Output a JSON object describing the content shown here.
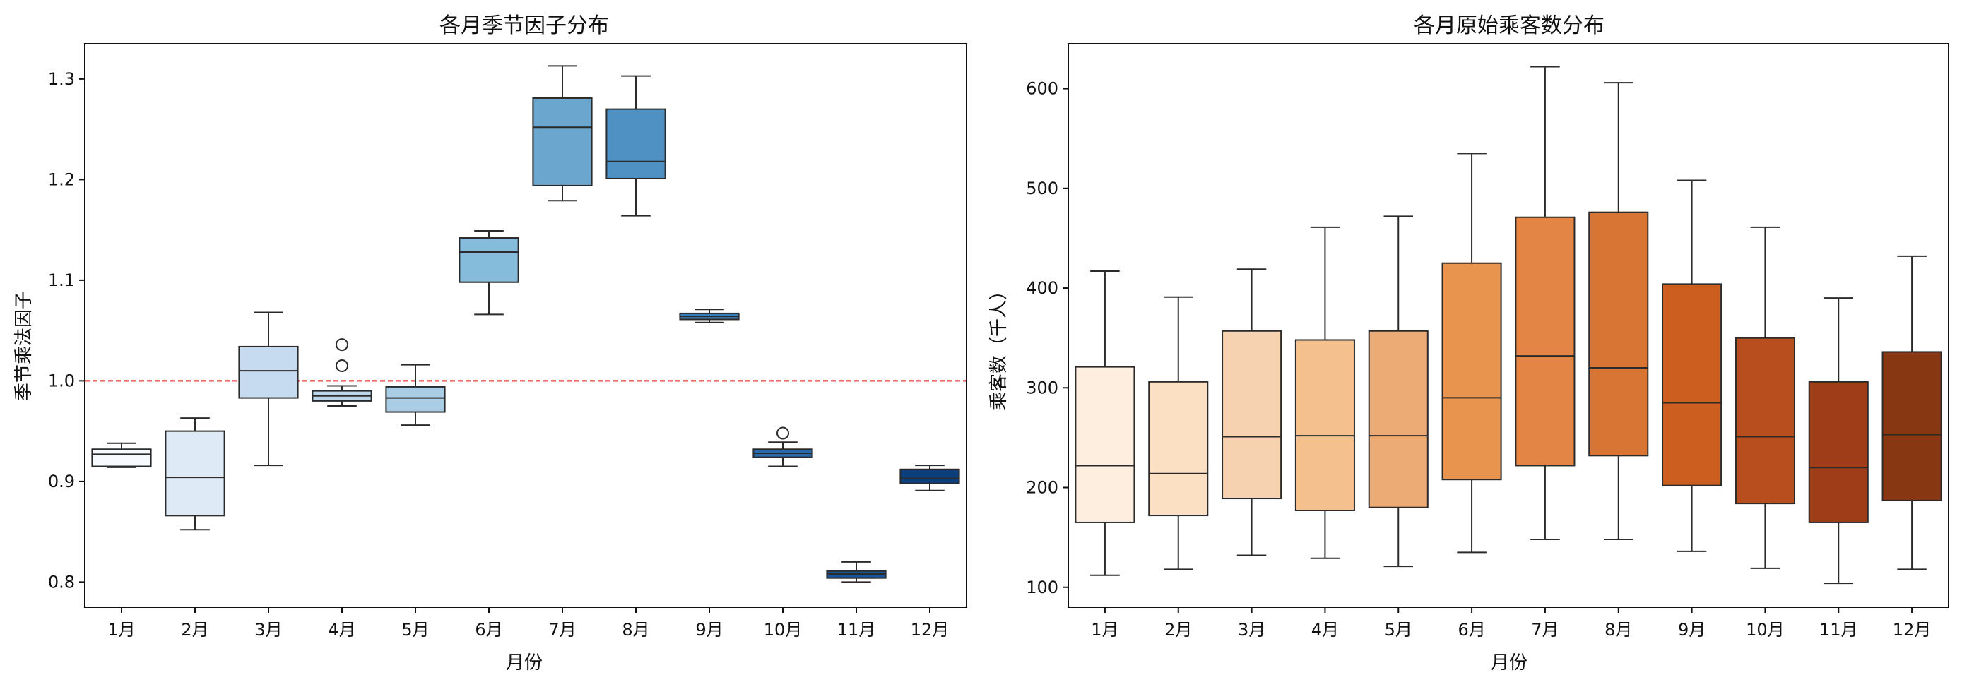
{
  "chart_data": [
    {
      "type": "boxplot",
      "title": "各月季节因子分布",
      "xlabel": "月份",
      "ylabel": "季节乘法因子",
      "ylim": [
        0.775,
        1.335
      ],
      "yticks": [
        0.8,
        0.9,
        1.0,
        1.1,
        1.2,
        1.3
      ],
      "reference_line": {
        "y": 1.0,
        "color": "#e41a1c",
        "style": "dashed"
      },
      "categories": [
        "1月",
        "2月",
        "3月",
        "4月",
        "5月",
        "6月",
        "7月",
        "8月",
        "9月",
        "10月",
        "11月",
        "12月"
      ],
      "colors": [
        "#f7fbff",
        "#deebf7",
        "#c6dbef",
        "#b9d6ea",
        "#a8cde5",
        "#85bcdc",
        "#6aa6cd",
        "#4f91c2",
        "#3a7eb8",
        "#2868ab",
        "#19549a",
        "#0d3f7e"
      ],
      "boxes": [
        {
          "whislo": 0.914,
          "q1": 0.915,
          "med": 0.927,
          "q3": 0.932,
          "whishi": 0.938,
          "fliers": []
        },
        {
          "whislo": 0.852,
          "q1": 0.866,
          "med": 0.904,
          "q3": 0.95,
          "whishi": 0.963,
          "fliers": []
        },
        {
          "whislo": 0.916,
          "q1": 0.983,
          "med": 1.01,
          "q3": 1.034,
          "whishi": 1.068,
          "fliers": []
        },
        {
          "whislo": 0.975,
          "q1": 0.98,
          "med": 0.985,
          "q3": 0.99,
          "whishi": 0.995,
          "fliers": [
            1.036,
            1.015
          ]
        },
        {
          "whislo": 0.956,
          "q1": 0.969,
          "med": 0.983,
          "q3": 0.994,
          "whishi": 1.016,
          "fliers": []
        },
        {
          "whislo": 1.066,
          "q1": 1.098,
          "med": 1.128,
          "q3": 1.142,
          "whishi": 1.149,
          "fliers": []
        },
        {
          "whislo": 1.179,
          "q1": 1.194,
          "med": 1.252,
          "q3": 1.281,
          "whishi": 1.313,
          "fliers": []
        },
        {
          "whislo": 1.164,
          "q1": 1.201,
          "med": 1.218,
          "q3": 1.27,
          "whishi": 1.303,
          "fliers": []
        },
        {
          "whislo": 1.058,
          "q1": 1.061,
          "med": 1.064,
          "q3": 1.067,
          "whishi": 1.071,
          "fliers": []
        },
        {
          "whislo": 0.915,
          "q1": 0.924,
          "med": 0.928,
          "q3": 0.932,
          "whishi": 0.939,
          "fliers": [
            0.948
          ]
        },
        {
          "whislo": 0.8,
          "q1": 0.804,
          "med": 0.808,
          "q3": 0.811,
          "whishi": 0.82,
          "fliers": []
        },
        {
          "whislo": 0.891,
          "q1": 0.898,
          "med": 0.903,
          "q3": 0.912,
          "whishi": 0.916,
          "fliers": []
        }
      ]
    },
    {
      "type": "boxplot",
      "title": "各月原始乘客数分布",
      "xlabel": "月份",
      "ylabel": "乘客数（千人）",
      "ylim": [
        80,
        645
      ],
      "yticks": [
        100,
        200,
        300,
        400,
        500,
        600
      ],
      "categories": [
        "1月",
        "2月",
        "3月",
        "4月",
        "5月",
        "6月",
        "7月",
        "8月",
        "9月",
        "10月",
        "11月",
        "12月"
      ],
      "colors": [
        "#fdeee0",
        "#fbe0c4",
        "#f7d2b0",
        "#f4c08e",
        "#ecaa74",
        "#e8944e",
        "#e38545",
        "#d87535",
        "#cc5f1f",
        "#b84d1e",
        "#9e3d17",
        "#873813"
      ],
      "boxes": [
        {
          "whislo": 112,
          "q1": 165,
          "med": 222,
          "q3": 321,
          "whishi": 417,
          "fliers": []
        },
        {
          "whislo": 118,
          "q1": 172,
          "med": 214,
          "q3": 306,
          "whishi": 391,
          "fliers": []
        },
        {
          "whislo": 132,
          "q1": 189,
          "med": 251,
          "q3": 357,
          "whishi": 419,
          "fliers": []
        },
        {
          "whislo": 129,
          "q1": 177,
          "med": 252,
          "q3": 348,
          "whishi": 461,
          "fliers": []
        },
        {
          "whislo": 121,
          "q1": 180,
          "med": 252,
          "q3": 357,
          "whishi": 472,
          "fliers": []
        },
        {
          "whislo": 135,
          "q1": 208,
          "med": 290,
          "q3": 425,
          "whishi": 535,
          "fliers": []
        },
        {
          "whislo": 148,
          "q1": 222,
          "med": 332,
          "q3": 471,
          "whishi": 622,
          "fliers": []
        },
        {
          "whislo": 148,
          "q1": 232,
          "med": 320,
          "q3": 476,
          "whishi": 606,
          "fliers": []
        },
        {
          "whislo": 136,
          "q1": 202,
          "med": 285,
          "q3": 404,
          "whishi": 508,
          "fliers": []
        },
        {
          "whislo": 119,
          "q1": 184,
          "med": 251,
          "q3": 350,
          "whishi": 461,
          "fliers": []
        },
        {
          "whislo": 104,
          "q1": 165,
          "med": 220,
          "q3": 306,
          "whishi": 390,
          "fliers": []
        },
        {
          "whislo": 118,
          "q1": 187,
          "med": 253,
          "q3": 336,
          "whishi": 432,
          "fliers": []
        }
      ]
    }
  ]
}
